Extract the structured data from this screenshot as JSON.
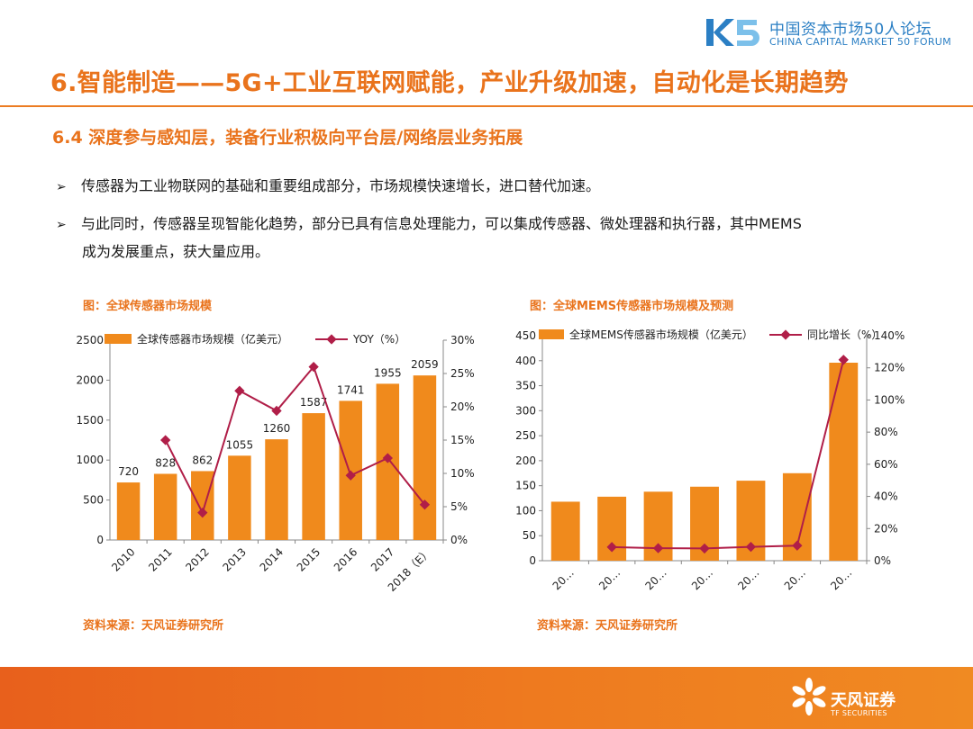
{
  "header": {
    "logo_cn": "中国资本市场50人论坛",
    "logo_en": "CHINA CAPITAL MARKET 50 FORUM",
    "logo_mark": "K5"
  },
  "title": "6.智能制造——5G+工业互联网赋能，产业升级加速，自动化是长期趋势",
  "subtitle": "6.4 深度参与感知层，装备行业积极向平台层/网络层业务拓展",
  "bullets": {
    "b1": "传感器为工业物联网的基础和重要组成部分，市场规模快速增长，进口替代加速。",
    "b2_line1": "与此同时，传感器呈现智能化趋势，部分已具有信息处理能力，可以集成传感器、微处理器和执行器，其中MEMS",
    "b2_line2": "成为发展重点，获大量应用。"
  },
  "colors": {
    "accent": "#e9731c",
    "bar": "#f08a1c",
    "line": "#b01e48",
    "logo_blue": "#2b7fc4"
  },
  "chart_data": [
    {
      "type": "bar",
      "title": "图：全球传感器市场规模",
      "source": "资料来源：天风证券研究所",
      "categories": [
        "2010",
        "2011",
        "2012",
        "2013",
        "2014",
        "2015",
        "2016",
        "2017",
        "2018（E）"
      ],
      "series": [
        {
          "name": "全球传感器市场规模（亿美元）",
          "kind": "bar",
          "axis": "left",
          "values": [
            720,
            828,
            862,
            1055,
            1260,
            1587,
            1741,
            1955,
            2059
          ]
        },
        {
          "name": "YOY（%）",
          "kind": "line",
          "axis": "right",
          "values": [
            null,
            15.0,
            4.1,
            22.4,
            19.4,
            26.0,
            9.7,
            12.3,
            5.3
          ]
        }
      ],
      "ylim": [
        0,
        2500
      ],
      "yticks": [
        "0",
        "500",
        "1000",
        "1500",
        "2000",
        "2500"
      ],
      "y2lim": [
        0,
        30
      ],
      "y2ticks": [
        "0%",
        "5%",
        "10%",
        "15%",
        "20%",
        "25%",
        "30%"
      ],
      "legend": "top",
      "grid": false
    },
    {
      "type": "bar",
      "title": "图：全球MEMS传感器市场规模及预测",
      "source": "资料来源：天风证券研究所",
      "categories": [
        "20…",
        "20…",
        "20…",
        "20…",
        "20…",
        "20…",
        "20…"
      ],
      "series": [
        {
          "name": "全球MEMS传感器市场规模（亿美元）",
          "kind": "bar",
          "axis": "left",
          "values": [
            118,
            128,
            138,
            148,
            160,
            175,
            396
          ]
        },
        {
          "name": "同比增长（%）",
          "kind": "line",
          "axis": "right",
          "values": [
            null,
            8.5,
            7.8,
            7.6,
            8.6,
            9.4,
            125
          ]
        }
      ],
      "ylim": [
        0,
        450
      ],
      "yticks": [
        "0",
        "50",
        "100",
        "150",
        "200",
        "250",
        "300",
        "350",
        "400",
        "450"
      ],
      "y2lim": [
        0,
        140
      ],
      "y2ticks": [
        "0%",
        "20%",
        "40%",
        "60%",
        "80%",
        "100%",
        "120%",
        "140%"
      ],
      "legend": "top",
      "grid": false
    }
  ],
  "footer": {
    "brand_cn": "天风证券",
    "brand_en": "TF SECURITIES"
  }
}
